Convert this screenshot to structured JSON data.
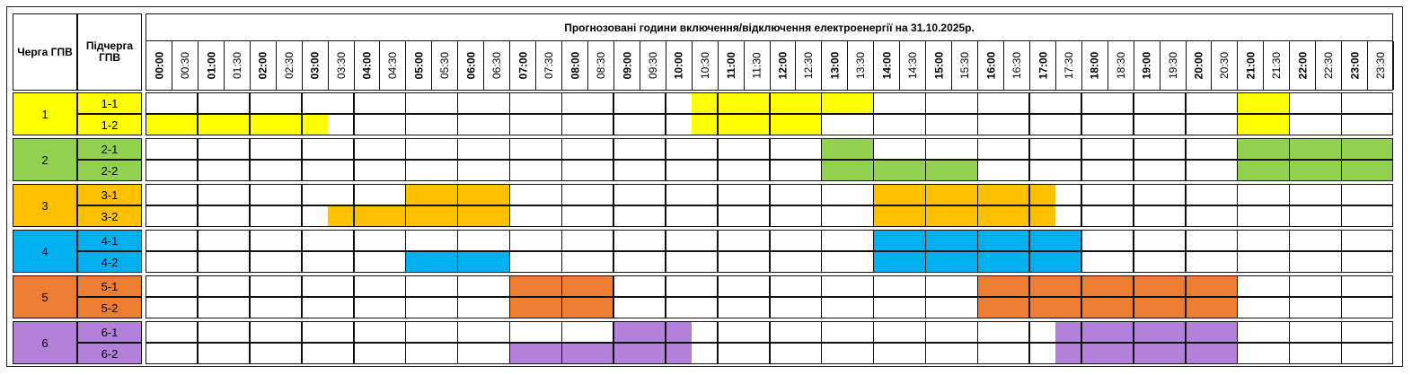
{
  "header": {
    "queue_label": "Черга ГПВ",
    "subqueue_label": "Підчерга ГПВ",
    "title": "Прогнозовані години включення/відключення електроенергії на 31.10.2025р."
  },
  "times": [
    "00:00",
    "00:30",
    "01:00",
    "01:30",
    "02:00",
    "02:30",
    "03:00",
    "03:30",
    "04:00",
    "04:30",
    "05:00",
    "05:30",
    "06:00",
    "06:30",
    "07:00",
    "07:30",
    "08:00",
    "08:30",
    "09:00",
    "09:30",
    "10:00",
    "10:30",
    "11:00",
    "11:30",
    "12:00",
    "12:30",
    "13:00",
    "13:30",
    "14:00",
    "14:30",
    "15:00",
    "15:30",
    "16:00",
    "16:30",
    "17:00",
    "17:30",
    "18:00",
    "18:30",
    "19:00",
    "19:30",
    "20:00",
    "20:30",
    "21:00",
    "21:30",
    "22:00",
    "22:30",
    "23:00",
    "23:30"
  ],
  "groups": [
    {
      "queue": "1",
      "color": "#ffff00",
      "subs": [
        {
          "label": "1-1",
          "outages": [
            [
              "10:30",
              "14:00"
            ],
            [
              "21:00",
              "22:00"
            ]
          ]
        },
        {
          "label": "1-2",
          "outages": [
            [
              "00:00",
              "03:30"
            ],
            [
              "10:30",
              "13:00"
            ],
            [
              "21:00",
              "22:00"
            ]
          ]
        }
      ]
    },
    {
      "queue": "2",
      "color": "#92d050",
      "subs": [
        {
          "label": "2-1",
          "outages": [
            [
              "13:00",
              "14:00"
            ],
            [
              "21:00",
              "24:00"
            ]
          ]
        },
        {
          "label": "2-2",
          "outages": [
            [
              "13:00",
              "16:00"
            ],
            [
              "21:00",
              "24:00"
            ]
          ]
        }
      ]
    },
    {
      "queue": "3",
      "color": "#ffc000",
      "subs": [
        {
          "label": "3-1",
          "outages": [
            [
              "05:00",
              "07:00"
            ],
            [
              "14:00",
              "17:30"
            ]
          ]
        },
        {
          "label": "3-2",
          "outages": [
            [
              "03:30",
              "07:00"
            ],
            [
              "14:00",
              "17:30"
            ]
          ]
        }
      ]
    },
    {
      "queue": "4",
      "color": "#00b0f0",
      "subs": [
        {
          "label": "4-1",
          "outages": [
            [
              "14:00",
              "18:00"
            ]
          ]
        },
        {
          "label": "4-2",
          "outages": [
            [
              "05:00",
              "07:00"
            ],
            [
              "14:00",
              "18:00"
            ]
          ]
        }
      ]
    },
    {
      "queue": "5",
      "color": "#ed7d31",
      "subs": [
        {
          "label": "5-1",
          "outages": [
            [
              "07:00",
              "09:00"
            ],
            [
              "16:00",
              "21:00"
            ]
          ]
        },
        {
          "label": "5-2",
          "outages": [
            [
              "07:00",
              "09:00"
            ],
            [
              "16:00",
              "21:00"
            ]
          ]
        }
      ]
    },
    {
      "queue": "6",
      "color": "#b381d9",
      "subs": [
        {
          "label": "6-1",
          "outages": [
            [
              "09:00",
              "10:30"
            ],
            [
              "17:30",
              "21:00"
            ]
          ]
        },
        {
          "label": "6-2",
          "outages": [
            [
              "07:00",
              "10:30"
            ],
            [
              "17:30",
              "21:00"
            ]
          ]
        }
      ]
    }
  ]
}
